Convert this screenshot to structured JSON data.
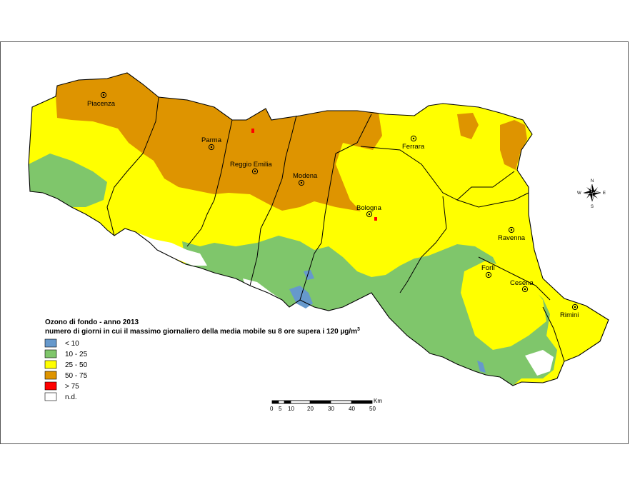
{
  "legend": {
    "title_line1": "Ozono di fondo - anno 2013",
    "title_line2": "numero di giorni in cui il massimo giornaliero della media mobile su 8 ore supera i 120 µg/m",
    "title_sup": "3",
    "classes": [
      {
        "label": "< 10",
        "color": "#6699cc"
      },
      {
        "label": "10 - 25",
        "color": "#7fc66b"
      },
      {
        "label": "25 - 50",
        "color": "#ffff00"
      },
      {
        "label": "50 - 75",
        "color": "#de9400"
      },
      {
        "label": "> 75",
        "color": "#ff0000"
      },
      {
        "label": "n.d.",
        "color": "#ffffff"
      }
    ]
  },
  "cities": [
    {
      "name": "Piacenza"
    },
    {
      "name": "Parma"
    },
    {
      "name": "Reggio Emilia"
    },
    {
      "name": "Modena"
    },
    {
      "name": "Bologna"
    },
    {
      "name": "Ferrara"
    },
    {
      "name": "Ravenna"
    },
    {
      "name": "Forlì"
    },
    {
      "name": "Cesena"
    },
    {
      "name": "Rimini"
    }
  ],
  "scalebar": {
    "unit": "Km",
    "ticks": [
      "0",
      "5",
      "10",
      "20",
      "30",
      "40",
      "50"
    ]
  },
  "compass": {
    "n": "N",
    "s": "S",
    "e": "E",
    "w": "W"
  }
}
